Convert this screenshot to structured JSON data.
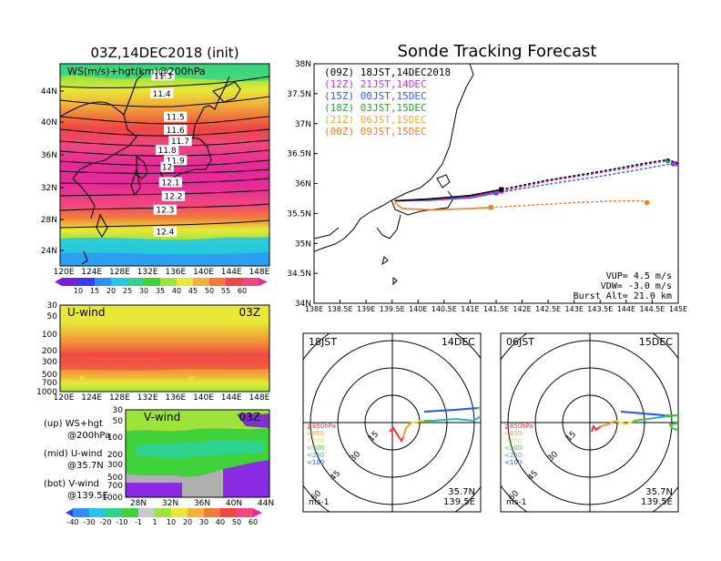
{
  "colors": {
    "ws_bands": [
      "#7b1fd6",
      "#3a3af0",
      "#2f8ff5",
      "#22c7e8",
      "#2fd38f",
      "#3fd23a",
      "#9ee33a",
      "#e8e838",
      "#f0b23a",
      "#f07a3a",
      "#f04545",
      "#f0477e",
      "#e62a9a"
    ],
    "tracks": [
      "#000000",
      "#cc33cc",
      "#3355ff",
      "#22aa22",
      "#eeaa22",
      "#f07a22"
    ],
    "hodo": [
      "#ee3333",
      "#ff9933",
      "#eedd33",
      "#33cc33",
      "#33aadd",
      "#2255ee"
    ]
  },
  "left": {
    "ws_title": "03Z,14DEC2018 (init)",
    "ws_label": "WS(m/s)+hgt(km)@200hPa",
    "lat_ticks": [
      "44N",
      "40N",
      "36N",
      "32N",
      "28N",
      "24N"
    ],
    "lon_ticks": [
      "120E",
      "124E",
      "128E",
      "132E",
      "136E",
      "140E",
      "144E",
      "148E"
    ],
    "ws_colorbar": [
      "10",
      "15",
      "20",
      "25",
      "30",
      "35",
      "40",
      "45",
      "50",
      "55",
      "60"
    ],
    "uwind_label": "U-wind",
    "uwind_time": "03Z",
    "p_ticks": [
      "30",
      "50",
      "100",
      "200",
      "300",
      "500",
      "700",
      "1000"
    ],
    "vwind_label": "V-wind",
    "vwind_time": "03Z",
    "vwind_lat_ticks": [
      "28N",
      "32N",
      "36N",
      "40N",
      "44N"
    ],
    "wind_colorbar": [
      "-40",
      "-30",
      "-20",
      "-10",
      "-1",
      "1",
      "10",
      "20",
      "30",
      "40",
      "50",
      "60"
    ],
    "legend": [
      {
        "a": "(up) WS+hgt",
        "b": "@200hPa"
      },
      {
        "a": "(mid) U-wind",
        "b": "@35.7N"
      },
      {
        "a": "(bot) V-wind",
        "b": "@139.5E"
      }
    ]
  },
  "track": {
    "title": "Sonde Tracking Forecast",
    "lat_ticks": [
      "38N",
      "37.5N",
      "37N",
      "36.5N",
      "36N",
      "35.5N",
      "35N",
      "34.5N",
      "34N"
    ],
    "lon_ticks": [
      "138E",
      "138.5E",
      "139E",
      "139.5E",
      "140E",
      "140.5E",
      "141E",
      "141.5E",
      "142E",
      "142.5E",
      "143E",
      "143.5E",
      "144E",
      "144.5E",
      "145E"
    ],
    "launch_entries": [
      "(09Z) 18JST,14DEC2018",
      "(12Z) 21JST,14DEC",
      "(15Z) 00JST,15DEC",
      "(18Z) 03JST,15DEC",
      "(21Z) 06JST,15DEC",
      "(00Z) 09JST,15DEC"
    ],
    "params": [
      "VUP= 4.5 m/s",
      "VDW= -3.0 m/s",
      "Burst Alt= 21.0 km"
    ]
  },
  "hodographs": [
    {
      "time": "18JST",
      "date": "14DEC",
      "unit": "ms-1",
      "lat": "35.7N",
      "lon": "139.5E",
      "ring_labels": [
        "15",
        "30",
        "45",
        "60"
      ],
      "levels": [
        "≧850hPa",
        "<850",
        "<700",
        "<500",
        "<250",
        "<100"
      ]
    },
    {
      "time": "06JST",
      "date": "15DEC",
      "unit": "ms-1",
      "lat": "35.7N",
      "lon": "139.5E",
      "ring_labels": [
        "15",
        "30",
        "45",
        "60"
      ],
      "levels": [
        "≧850hPa",
        "<850",
        "<700",
        "<500",
        "<250",
        "<100"
      ]
    }
  ],
  "chart_data": [
    {
      "type": "heatmap",
      "title": "03Z,14DEC2018 (init)",
      "field": "WS(m/s)+hgt(km)@200hPa",
      "xlim": [
        "120E",
        "150E"
      ],
      "ylim": [
        "22N",
        "47N"
      ],
      "contour_labels": [
        {
          "value": "11.3",
          "lon": 134.5,
          "lat": 45.5
        },
        {
          "value": "11.4",
          "lon": 134.3,
          "lat": 43.3
        },
        {
          "value": "11.5",
          "lon": 136.3,
          "lat": 40.4
        },
        {
          "value": "11.6",
          "lon": 136.3,
          "lat": 38.8
        },
        {
          "value": "11.7",
          "lon": 137.0,
          "lat": 37.4
        },
        {
          "value": "11.8",
          "lon": 135.1,
          "lat": 36.3
        },
        {
          "value": "11.9",
          "lon": 136.3,
          "lat": 35.0
        },
        {
          "value": "12",
          "lon": 135.1,
          "lat": 34.2
        },
        {
          "value": "12.1",
          "lon": 135.6,
          "lat": 32.3
        },
        {
          "value": "12.2",
          "lon": 136.0,
          "lat": 30.6
        },
        {
          "value": "12.3",
          "lon": 134.8,
          "lat": 28.9
        },
        {
          "value": "12.4",
          "lon": 134.8,
          "lat": 26.2
        }
      ]
    },
    {
      "type": "line",
      "title": "Sonde Tracking Forecast",
      "xlabel": "",
      "ylabel": "",
      "xlim": [
        138,
        145
      ],
      "ylim": [
        34,
        38
      ],
      "series": [
        {
          "name": "(09Z) 18JST,14DEC2018",
          "x": [
            139.55,
            140.2,
            141.0,
            141.6,
            142.5,
            143.5,
            144.3,
            144.8,
            145.05
          ],
          "y": [
            35.71,
            35.74,
            35.8,
            35.9,
            36.06,
            36.2,
            36.33,
            36.4,
            36.32
          ]
        },
        {
          "name": "(12Z) 21JST,14DEC",
          "x": [
            139.55,
            140.2,
            141.0,
            141.6,
            142.5,
            143.5,
            144.3,
            144.75,
            144.95
          ],
          "y": [
            35.71,
            35.73,
            35.78,
            35.87,
            36.04,
            36.18,
            36.3,
            36.38,
            36.33
          ]
        },
        {
          "name": "(15Z) 00JST,15DEC",
          "x": [
            139.55,
            140.2,
            141.0,
            141.5,
            142.5,
            143.5,
            144.3,
            144.75,
            144.9
          ],
          "y": [
            35.71,
            35.72,
            35.76,
            35.84,
            35.99,
            36.12,
            36.24,
            36.31,
            36.33
          ]
        },
        {
          "name": "(18Z) 03JST,15DEC",
          "x": [
            139.55,
            140.2,
            141.0,
            141.6,
            142.5,
            143.5,
            144.3,
            144.8
          ],
          "y": [
            35.71,
            35.74,
            35.79,
            35.9,
            36.05,
            36.19,
            36.32,
            36.38
          ]
        },
        {
          "name": "(21Z) 06JST,15DEC",
          "x": [
            139.55,
            140.2,
            141.0,
            141.6,
            142.5,
            143.5,
            144.3,
            144.8
          ],
          "y": [
            35.71,
            35.74,
            35.79,
            35.9,
            36.05,
            36.19,
            36.32,
            36.38
          ]
        },
        {
          "name": "(00Z) 09JST,15DEC",
          "x": [
            139.55,
            139.7,
            140.3,
            141.0,
            141.4,
            142.2,
            143.0,
            143.8,
            144.3,
            144.4
          ],
          "y": [
            35.68,
            35.58,
            35.56,
            35.58,
            35.6,
            35.64,
            35.68,
            35.71,
            35.71,
            35.68
          ]
        }
      ],
      "annotations": [
        "VUP= 4.5 m/s",
        "VDW= -3.0 m/s",
        "Burst Alt= 21.0 km"
      ]
    }
  ]
}
